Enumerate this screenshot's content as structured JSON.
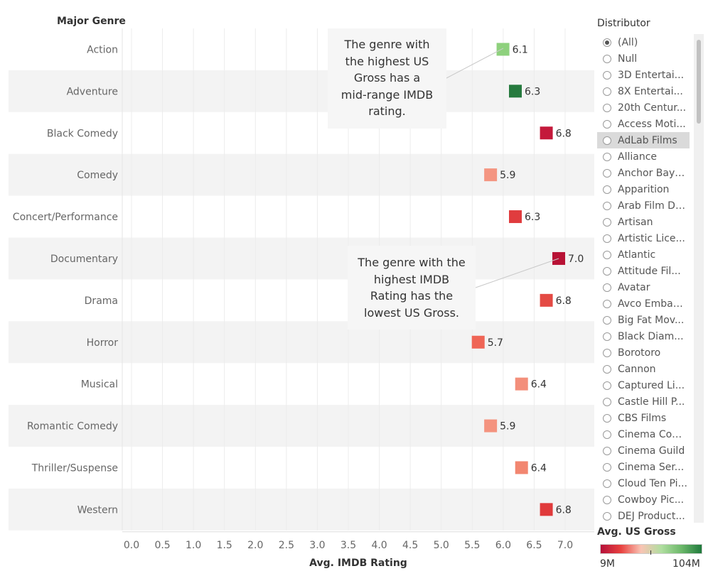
{
  "chart_data": {
    "type": "bar",
    "yheader": "Major Genre",
    "xlabel": "Avg. IMDB Rating",
    "xlim": [
      0,
      7.5
    ],
    "xticks": [
      "0.0",
      "0.5",
      "1.0",
      "1.5",
      "2.0",
      "2.5",
      "3.0",
      "3.5",
      "4.0",
      "4.5",
      "5.0",
      "5.5",
      "6.0",
      "6.5",
      "7.0"
    ],
    "categories": [
      "Action",
      "Adventure",
      "Black Comedy",
      "Comedy",
      "Concert/Performance",
      "Documentary",
      "Drama",
      "Horror",
      "Musical",
      "Romantic Comedy",
      "Thriller/Suspense",
      "Western"
    ],
    "values": [
      6.1,
      6.3,
      6.8,
      5.9,
      6.3,
      7.0,
      6.8,
      5.7,
      6.4,
      5.9,
      6.4,
      6.8
    ],
    "labels": [
      "6.1",
      "6.3",
      "6.8",
      "5.9",
      "6.3",
      "7.0",
      "6.8",
      "5.7",
      "6.4",
      "5.9",
      "6.4",
      "6.8"
    ],
    "colors": [
      "#8ed17d",
      "#267a3e",
      "#c4193b",
      "#f49581",
      "#e03c3e",
      "#b81235",
      "#e44a44",
      "#ef6556",
      "#f38f7b",
      "#f4937f",
      "#f28670",
      "#e03a3b"
    ],
    "mark": "square",
    "row_banding": true
  },
  "annotations": [
    {
      "lines": [
        "The genre with",
        "the highest US",
        "Gross has a",
        "mid-range IMDB",
        "rating."
      ]
    },
    {
      "lines": [
        "The genre with the",
        "highest IMDB",
        "Rating has the",
        "lowest US Gross."
      ]
    }
  ],
  "filter": {
    "title": "Distributor",
    "items": [
      "(All)",
      "Null",
      "3D Entertai...",
      "8X Entertai...",
      "20th Centur...",
      "Access Moti...",
      "AdLab Films",
      "Alliance",
      "Anchor Bay ...",
      "Apparition",
      "Arab Film Di...",
      "Artisan",
      "Artistic Lice...",
      "Atlantic",
      "Attitude Fil...",
      "Avatar",
      "Avco Embas...",
      "Big Fat Mov...",
      "Black Diam...",
      "Borotoro",
      "Cannon",
      "Captured Li...",
      "Castle Hill P...",
      "CBS Films",
      "Cinema Con ...",
      "Cinema Guild",
      "Cinema Ser...",
      "Cloud Ten Pi...",
      "Cowboy Pic...",
      "DEJ Product..."
    ],
    "selected_index": 0,
    "hover_index": 6
  },
  "legend": {
    "title": "Avg. US Gross",
    "min_label": "9M",
    "max_label": "104M",
    "gradient": [
      "#b5103a",
      "#e8413f",
      "#f9c4b4",
      "#b0dea0",
      "#6cb86a",
      "#1f7a3c"
    ]
  }
}
